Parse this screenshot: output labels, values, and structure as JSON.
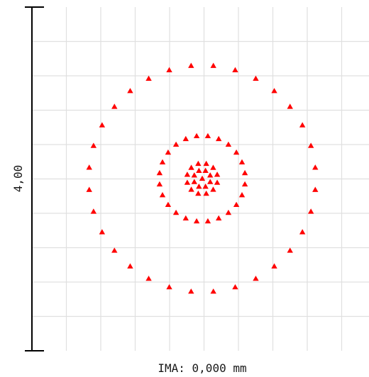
{
  "chart_data": {
    "type": "scatter",
    "title": "",
    "scale_label": "4,00",
    "xlabel": "IMA: 0,000 mm",
    "grid": true,
    "marker": "triangle",
    "marker_color": "#ff0000",
    "grid_color": "#e0e0e0",
    "axis_color": "#000000",
    "xlim": [
      -2.06,
      2.06
    ],
    "ylim": [
      -2.0,
      2.0
    ],
    "series": [
      {
        "rings": [
          {
            "radius": 1.32,
            "count": 32
          },
          {
            "radius": 0.5,
            "count": 24
          },
          {
            "radius": 0.18,
            "count": 12
          },
          {
            "radius": 0.1,
            "count": 8
          }
        ]
      }
    ]
  }
}
